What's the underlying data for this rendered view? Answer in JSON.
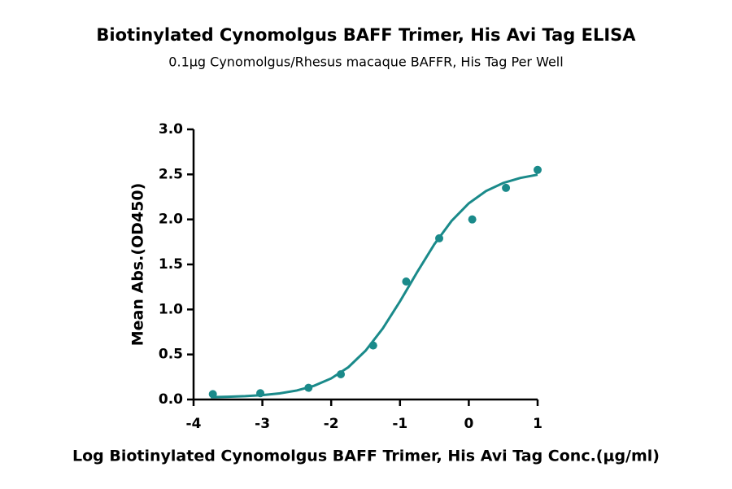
{
  "chart_data": {
    "type": "scatter",
    "title": "Biotinylated Cynomolgus BAFF Trimer, His Avi Tag ELISA",
    "subtitle": "0.1μg Cynomolgus/Rhesus macaque BAFFR, His Tag Per Well",
    "x_label": "Log Biotinylated Cynomolgus BAFF Trimer, His Avi Tag Conc.(μg/ml)",
    "y_label": "Mean Abs.(OD450)",
    "color": "#1a8a8a",
    "x": [
      -3.72,
      -3.03,
      -2.33,
      -1.86,
      -1.39,
      -0.91,
      -0.43,
      0.05,
      0.54,
      1.0
    ],
    "values": [
      0.06,
      0.07,
      0.13,
      0.28,
      0.6,
      1.31,
      1.79,
      2.0,
      2.35,
      2.55
    ],
    "curve": {
      "x": [
        -3.75,
        -3.5,
        -3.25,
        -3,
        -2.75,
        -2.5,
        -2.25,
        -2,
        -1.75,
        -1.5,
        -1.25,
        -1,
        -0.75,
        -0.5,
        -0.25,
        0,
        0.25,
        0.5,
        0.75,
        1
      ],
      "values": [
        0.026,
        0.03,
        0.037,
        0.049,
        0.068,
        0.1,
        0.152,
        0.234,
        0.359,
        0.542,
        0.789,
        1.09,
        1.415,
        1.725,
        1.984,
        2.179,
        2.315,
        2.405,
        2.461,
        2.497
      ]
    },
    "xlim": [
      -4,
      1
    ],
    "xticks": [
      -4,
      -3,
      -2,
      -1,
      0,
      1
    ],
    "ylim": [
      0,
      3
    ],
    "yticks": [
      {
        "value": 0,
        "label": "0.0"
      },
      {
        "value": 0.5,
        "label": "0.5"
      },
      {
        "value": 1,
        "label": "1.0"
      },
      {
        "value": 1.5,
        "label": "1.5"
      },
      {
        "value": 2,
        "label": "2.0"
      },
      {
        "value": 2.5,
        "label": "2.5"
      },
      {
        "value": 3,
        "label": "3.0"
      }
    ],
    "grid": false
  }
}
